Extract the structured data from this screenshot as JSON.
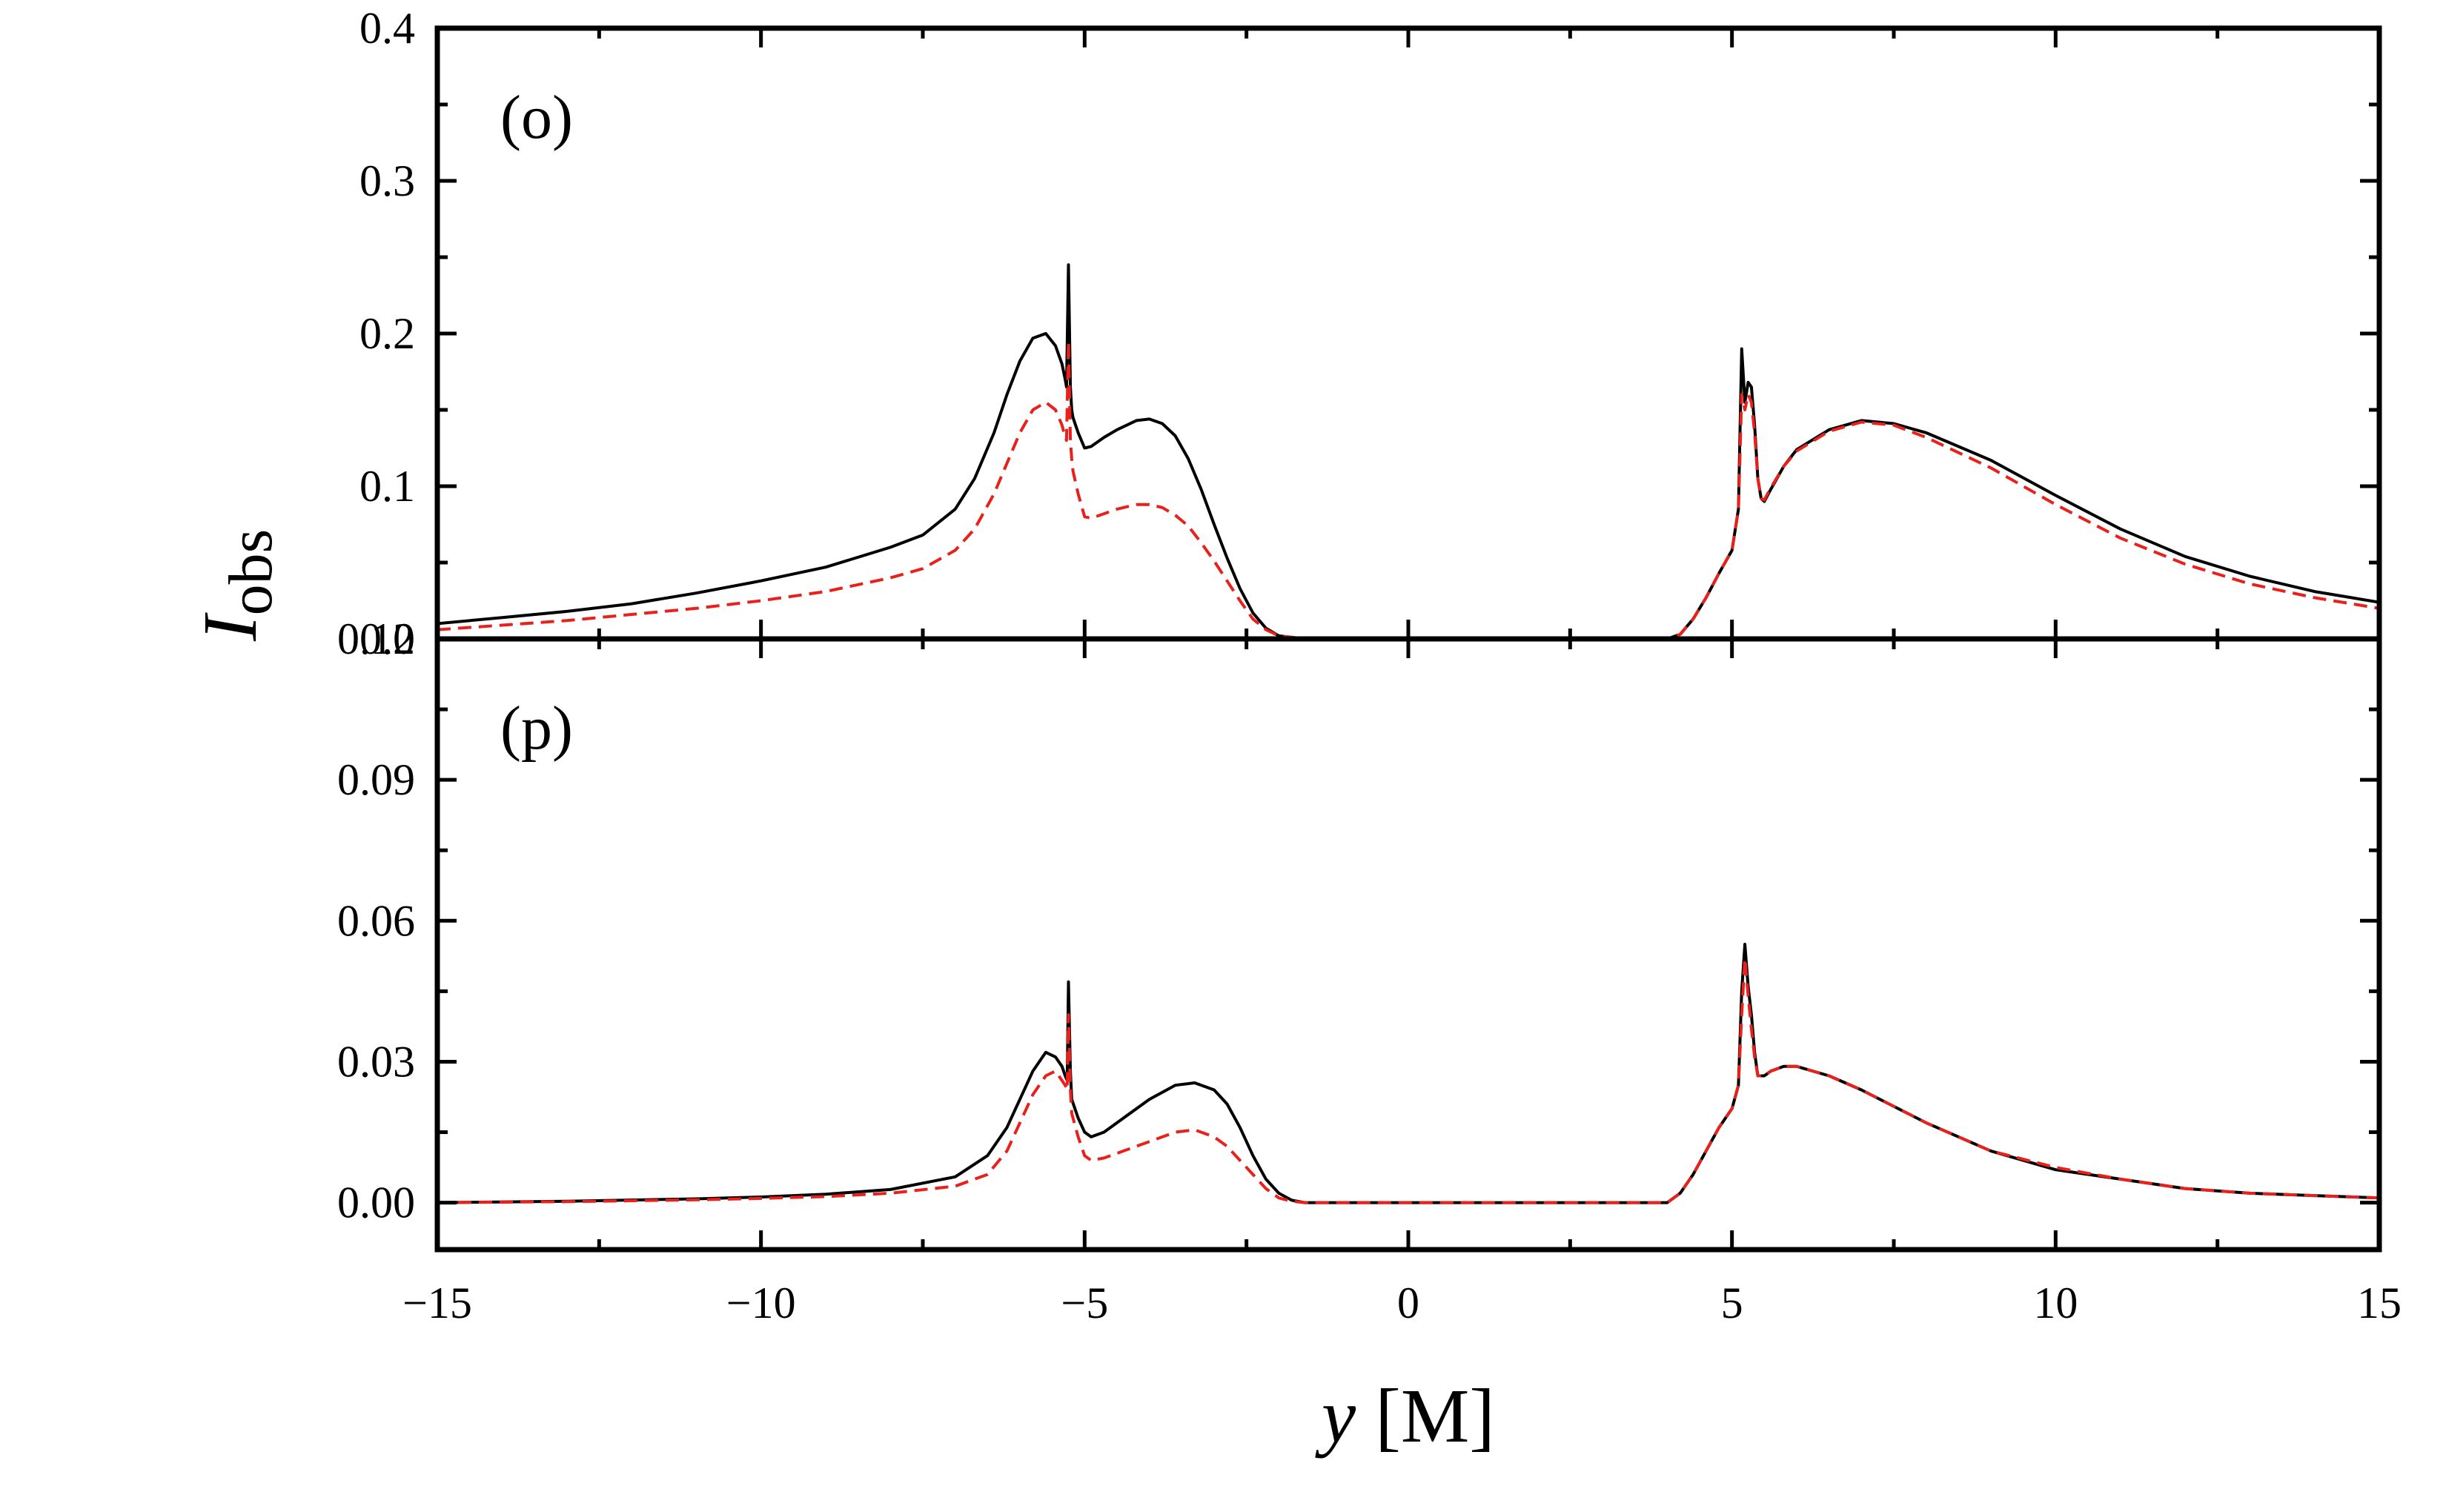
{
  "figure": {
    "ylabel": "I",
    "ylabel_sub": "obs",
    "xlabel_italic": "y",
    "xlabel_unit": " [M]"
  },
  "chart_data": [
    {
      "type": "line",
      "panel_label": "(o)",
      "xlim": [
        -15,
        15
      ],
      "ylim": [
        0.0,
        0.4
      ],
      "xticks": [
        -15,
        -10,
        -5,
        0,
        5,
        10,
        15
      ],
      "xtick_labels": [
        "−15",
        "−10",
        "−5",
        "0",
        "5",
        "10",
        "15"
      ],
      "yticks": [
        0.0,
        0.1,
        0.2,
        0.3,
        0.4
      ],
      "ytick_labels": [
        "0.0",
        "0.1",
        "0.2",
        "0.3",
        "0.4"
      ],
      "series": [
        {
          "name": "solid",
          "color": "#000000",
          "dash": "solid",
          "x": [
            -15,
            -14,
            -13,
            -12,
            -11,
            -10,
            -9,
            -8,
            -7.5,
            -7,
            -6.7,
            -6.4,
            -6.2,
            -6.0,
            -5.8,
            -5.6,
            -5.45,
            -5.35,
            -5.3,
            -5.28,
            -5.25,
            -5.22,
            -5.2,
            -5.18,
            -5.1,
            -5.0,
            -4.9,
            -4.7,
            -4.5,
            -4.2,
            -4.0,
            -3.8,
            -3.6,
            -3.4,
            -3.2,
            -3.0,
            -2.8,
            -2.6,
            -2.4,
            -2.2,
            -2.0,
            -1.8,
            -1.6,
            -1.0,
            0,
            1,
            2,
            3,
            3.5,
            4.0,
            4.2,
            4.4,
            4.6,
            4.8,
            5.0,
            5.1,
            5.15,
            5.2,
            5.25,
            5.3,
            5.35,
            5.4,
            5.45,
            5.5,
            5.6,
            5.8,
            6.0,
            6.5,
            7.0,
            7.5,
            8,
            9,
            10,
            11,
            12,
            13,
            14,
            15
          ],
          "y": [
            0.01,
            0.014,
            0.018,
            0.023,
            0.03,
            0.038,
            0.047,
            0.06,
            0.068,
            0.085,
            0.105,
            0.135,
            0.16,
            0.182,
            0.197,
            0.2,
            0.192,
            0.18,
            0.17,
            0.165,
            0.245,
            0.165,
            0.15,
            0.145,
            0.135,
            0.125,
            0.126,
            0.132,
            0.137,
            0.143,
            0.144,
            0.141,
            0.133,
            0.118,
            0.098,
            0.075,
            0.053,
            0.033,
            0.017,
            0.007,
            0.002,
            0.001,
            0.0,
            0.0,
            0.0,
            0.0,
            0.0,
            0.0,
            0.0,
            0.0,
            0.003,
            0.013,
            0.027,
            0.043,
            0.058,
            0.085,
            0.19,
            0.155,
            0.168,
            0.165,
            0.14,
            0.105,
            0.092,
            0.09,
            0.098,
            0.113,
            0.124,
            0.137,
            0.143,
            0.141,
            0.135,
            0.117,
            0.094,
            0.072,
            0.054,
            0.041,
            0.031,
            0.024
          ]
        },
        {
          "name": "dashed",
          "color": "#e8211c",
          "dash": "dashed",
          "x": [
            -15,
            -14,
            -13,
            -12,
            -11,
            -10,
            -9,
            -8,
            -7.5,
            -7,
            -6.7,
            -6.4,
            -6.2,
            -6.0,
            -5.8,
            -5.6,
            -5.45,
            -5.35,
            -5.3,
            -5.28,
            -5.25,
            -5.22,
            -5.2,
            -5.18,
            -5.1,
            -5.0,
            -4.9,
            -4.7,
            -4.5,
            -4.2,
            -4.0,
            -3.8,
            -3.6,
            -3.4,
            -3.2,
            -3.0,
            -2.8,
            -2.6,
            -2.4,
            -2.2,
            -2.0,
            -1.8,
            -1.6,
            -1.0,
            0,
            1,
            2,
            3,
            3.5,
            4.0,
            4.2,
            4.4,
            4.6,
            4.8,
            5.0,
            5.1,
            5.15,
            5.2,
            5.25,
            5.3,
            5.35,
            5.4,
            5.45,
            5.5,
            5.6,
            5.8,
            6.0,
            6.5,
            7.0,
            7.5,
            8,
            9,
            10,
            11,
            12,
            13,
            14,
            15
          ],
          "y": [
            0.006,
            0.009,
            0.012,
            0.016,
            0.02,
            0.025,
            0.031,
            0.04,
            0.046,
            0.058,
            0.072,
            0.095,
            0.115,
            0.135,
            0.15,
            0.155,
            0.15,
            0.14,
            0.132,
            0.13,
            0.195,
            0.13,
            0.118,
            0.11,
            0.095,
            0.08,
            0.079,
            0.082,
            0.085,
            0.088,
            0.088,
            0.086,
            0.081,
            0.074,
            0.063,
            0.051,
            0.038,
            0.025,
            0.013,
            0.006,
            0.002,
            0.001,
            0.0,
            0.0,
            0.0,
            0.0,
            0.0,
            0.0,
            0.0,
            0.0,
            0.003,
            0.013,
            0.027,
            0.043,
            0.058,
            0.085,
            0.16,
            0.15,
            0.16,
            0.155,
            0.135,
            0.105,
            0.092,
            0.091,
            0.099,
            0.113,
            0.123,
            0.136,
            0.142,
            0.14,
            0.132,
            0.112,
            0.088,
            0.066,
            0.049,
            0.036,
            0.027,
            0.02
          ]
        }
      ]
    },
    {
      "type": "line",
      "panel_label": "(p)",
      "xlim": [
        -15,
        15
      ],
      "ylim": [
        -0.01,
        0.12
      ],
      "xticks": [
        -15,
        -10,
        -5,
        0,
        5,
        10,
        15
      ],
      "xtick_labels": [
        "−15",
        "−10",
        "−5",
        "0",
        "5",
        "10",
        "15"
      ],
      "yticks": [
        0.0,
        0.03,
        0.06,
        0.09,
        0.12
      ],
      "ytick_labels": [
        "0.00",
        "0.03",
        "0.06",
        "0.09",
        "0.12"
      ],
      "series": [
        {
          "name": "solid",
          "color": "#000000",
          "dash": "solid",
          "x": [
            -15,
            -13,
            -11,
            -10,
            -9,
            -8,
            -7,
            -6.5,
            -6.2,
            -6.0,
            -5.8,
            -5.6,
            -5.45,
            -5.35,
            -5.3,
            -5.27,
            -5.25,
            -5.22,
            -5.2,
            -5.1,
            -5.0,
            -4.9,
            -4.7,
            -4.4,
            -4.0,
            -3.6,
            -3.3,
            -3.0,
            -2.8,
            -2.6,
            -2.4,
            -2.2,
            -2.0,
            -1.8,
            -1.6,
            -1.0,
            0,
            1,
            2,
            3,
            3.5,
            4.0,
            4.2,
            4.4,
            4.6,
            4.8,
            5.0,
            5.1,
            5.15,
            5.2,
            5.25,
            5.3,
            5.35,
            5.4,
            5.5,
            5.6,
            5.8,
            6.0,
            6.5,
            7.0,
            8,
            9,
            10,
            11,
            12,
            13,
            14,
            15
          ],
          "y": [
            0.0,
            0.0003,
            0.0008,
            0.0012,
            0.0018,
            0.0028,
            0.0055,
            0.01,
            0.016,
            0.022,
            0.028,
            0.032,
            0.031,
            0.029,
            0.027,
            0.026,
            0.047,
            0.028,
            0.022,
            0.018,
            0.015,
            0.014,
            0.015,
            0.018,
            0.022,
            0.025,
            0.0255,
            0.024,
            0.021,
            0.016,
            0.01,
            0.005,
            0.002,
            0.0005,
            0.0,
            0.0,
            0.0,
            0.0,
            0.0,
            0.0,
            0.0,
            0.0,
            0.002,
            0.006,
            0.011,
            0.016,
            0.02,
            0.025,
            0.045,
            0.055,
            0.046,
            0.04,
            0.032,
            0.027,
            0.027,
            0.028,
            0.029,
            0.029,
            0.027,
            0.024,
            0.017,
            0.011,
            0.007,
            0.005,
            0.003,
            0.002,
            0.0015,
            0.001
          ]
        },
        {
          "name": "dashed",
          "color": "#e8211c",
          "dash": "dashed",
          "x": [
            -15,
            -13,
            -11,
            -10,
            -9,
            -8,
            -7,
            -6.5,
            -6.2,
            -6.0,
            -5.8,
            -5.6,
            -5.45,
            -5.35,
            -5.3,
            -5.27,
            -5.25,
            -5.22,
            -5.2,
            -5.1,
            -5.0,
            -4.9,
            -4.7,
            -4.4,
            -4.0,
            -3.6,
            -3.3,
            -3.0,
            -2.8,
            -2.6,
            -2.4,
            -2.2,
            -2.0,
            -1.8,
            -1.6,
            -1.0,
            0,
            1,
            2,
            3,
            3.5,
            4.0,
            4.2,
            4.4,
            4.6,
            4.8,
            5.0,
            5.1,
            5.15,
            5.2,
            5.25,
            5.3,
            5.35,
            5.4,
            5.5,
            5.6,
            5.8,
            6.0,
            6.5,
            7.0,
            8,
            9,
            10,
            11,
            12,
            13,
            14,
            15
          ],
          "y": [
            0.0,
            0.0002,
            0.0006,
            0.0009,
            0.0013,
            0.002,
            0.0035,
            0.006,
            0.011,
            0.017,
            0.023,
            0.027,
            0.028,
            0.026,
            0.025,
            0.024,
            0.04,
            0.024,
            0.019,
            0.014,
            0.01,
            0.009,
            0.0095,
            0.011,
            0.013,
            0.015,
            0.0155,
            0.014,
            0.012,
            0.009,
            0.006,
            0.003,
            0.001,
            0.0003,
            0.0,
            0.0,
            0.0,
            0.0,
            0.0,
            0.0,
            0.0,
            0.0,
            0.002,
            0.006,
            0.011,
            0.016,
            0.02,
            0.025,
            0.04,
            0.052,
            0.044,
            0.037,
            0.031,
            0.027,
            0.027,
            0.028,
            0.029,
            0.029,
            0.027,
            0.024,
            0.017,
            0.011,
            0.0075,
            0.005,
            0.003,
            0.002,
            0.0015,
            0.001
          ]
        }
      ]
    }
  ]
}
